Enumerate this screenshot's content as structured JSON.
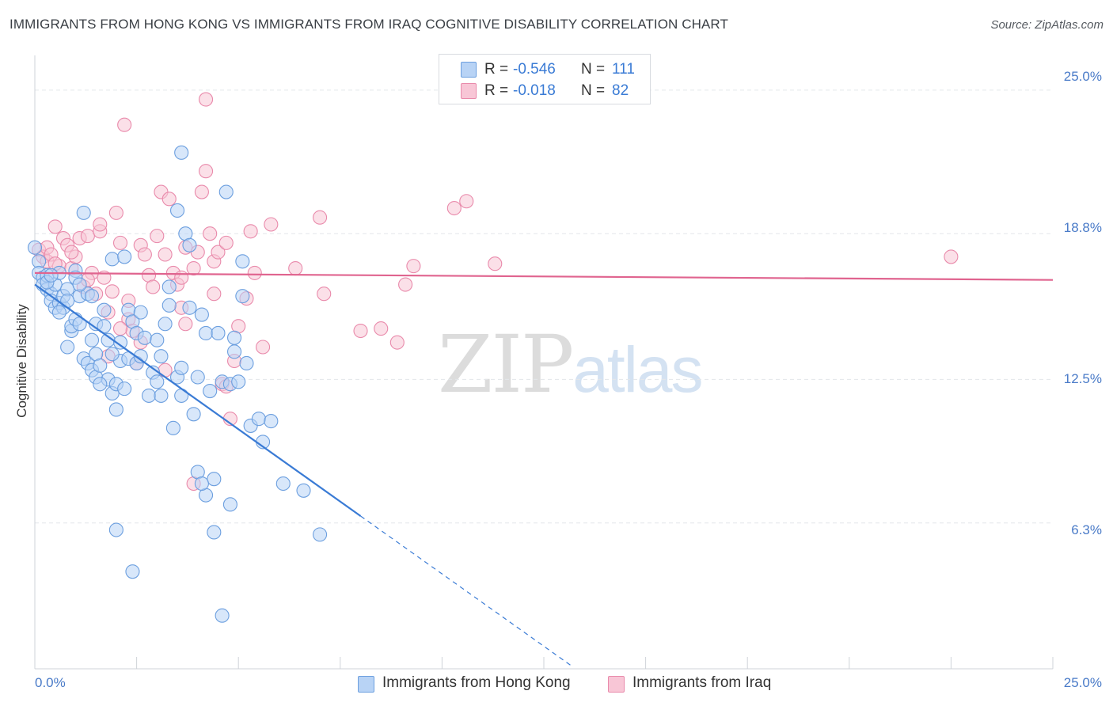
{
  "title": "IMMIGRANTS FROM HONG KONG VS IMMIGRANTS FROM IRAQ COGNITIVE DISABILITY CORRELATION CHART",
  "source": "Source: ZipAtlas.com",
  "watermark": {
    "zip": "ZIP",
    "atlas": "atlas"
  },
  "legend": {
    "r_label": "R =",
    "n_label": "N =",
    "rows": [
      {
        "r": "-0.546",
        "n": "111"
      },
      {
        "r": "-0.018",
        "n": "82"
      }
    ]
  },
  "colors": {
    "series1_fill": "#b8d3f5",
    "series1_stroke": "#6c9fdf",
    "series1_line": "#3a7bd5",
    "series2_fill": "#f8c6d6",
    "series2_stroke": "#e98aab",
    "series2_line": "#e0648f",
    "tick_text": "#4a7bc8"
  },
  "chart_data": {
    "type": "scatter",
    "title": "IMMIGRANTS FROM HONG KONG VS IMMIGRANTS FROM IRAQ COGNITIVE DISABILITY CORRELATION CHART",
    "xlabel": "",
    "ylabel": "Cognitive Disability",
    "xlim": [
      0,
      25
    ],
    "ylim": [
      0,
      26.5
    ],
    "x_tick_labels": [
      "0.0%",
      "25.0%"
    ],
    "y_ticks": [
      6.3,
      12.5,
      18.8,
      25.0
    ],
    "y_tick_labels": [
      "6.3%",
      "12.5%",
      "18.8%",
      "25.0%"
    ],
    "grid": true,
    "legend_position": "top-center",
    "series": [
      {
        "name": "Immigrants from Hong Kong",
        "r": -0.546,
        "n": 111,
        "trend": {
          "x0": 0.0,
          "y0": 16.6,
          "x1": 8.0,
          "y1": 6.6,
          "dash_to_x": 13.2
        },
        "points": [
          [
            0.0,
            18.2
          ],
          [
            0.1,
            17.6
          ],
          [
            0.1,
            17.1
          ],
          [
            0.2,
            16.9
          ],
          [
            0.2,
            16.6
          ],
          [
            0.3,
            16.4
          ],
          [
            0.3,
            17.0
          ],
          [
            0.4,
            16.2
          ],
          [
            0.4,
            15.9
          ],
          [
            0.5,
            15.6
          ],
          [
            0.5,
            16.6
          ],
          [
            0.6,
            15.8
          ],
          [
            0.6,
            17.1
          ],
          [
            0.7,
            15.6
          ],
          [
            0.7,
            16.1
          ],
          [
            0.8,
            16.4
          ],
          [
            0.8,
            13.9
          ],
          [
            0.9,
            14.6
          ],
          [
            0.9,
            14.8
          ],
          [
            1.0,
            15.1
          ],
          [
            1.0,
            17.2
          ],
          [
            1.0,
            16.9
          ],
          [
            1.1,
            16.1
          ],
          [
            1.1,
            14.9
          ],
          [
            1.2,
            19.7
          ],
          [
            1.2,
            13.4
          ],
          [
            1.3,
            13.2
          ],
          [
            1.3,
            16.2
          ],
          [
            1.4,
            16.1
          ],
          [
            1.4,
            12.9
          ],
          [
            1.5,
            12.6
          ],
          [
            1.5,
            14.9
          ],
          [
            1.5,
            13.6
          ],
          [
            1.6,
            13.1
          ],
          [
            1.7,
            14.8
          ],
          [
            1.7,
            15.5
          ],
          [
            1.8,
            14.2
          ],
          [
            1.8,
            12.5
          ],
          [
            1.9,
            11.9
          ],
          [
            1.9,
            17.7
          ],
          [
            2.0,
            11.2
          ],
          [
            2.0,
            12.3
          ],
          [
            2.1,
            13.3
          ],
          [
            2.2,
            12.1
          ],
          [
            2.2,
            17.8
          ],
          [
            2.3,
            15.5
          ],
          [
            2.3,
            13.4
          ],
          [
            2.4,
            15.0
          ],
          [
            2.5,
            14.5
          ],
          [
            2.5,
            13.2
          ],
          [
            2.6,
            15.4
          ],
          [
            2.7,
            14.3
          ],
          [
            2.8,
            11.8
          ],
          [
            2.9,
            12.8
          ],
          [
            3.0,
            12.4
          ],
          [
            3.0,
            14.2
          ],
          [
            3.1,
            13.5
          ],
          [
            3.2,
            14.9
          ],
          [
            3.3,
            15.7
          ],
          [
            3.3,
            16.5
          ],
          [
            3.4,
            10.4
          ],
          [
            3.5,
            12.6
          ],
          [
            3.6,
            11.8
          ],
          [
            3.7,
            18.8
          ],
          [
            3.8,
            15.6
          ],
          [
            3.9,
            11.0
          ],
          [
            4.0,
            12.6
          ],
          [
            4.1,
            15.3
          ],
          [
            4.2,
            14.5
          ],
          [
            4.3,
            12.0
          ],
          [
            4.5,
            14.5
          ],
          [
            4.6,
            12.4
          ],
          [
            4.7,
            20.6
          ],
          [
            4.8,
            12.3
          ],
          [
            4.9,
            13.7
          ],
          [
            4.9,
            14.3
          ],
          [
            5.0,
            12.4
          ],
          [
            5.1,
            17.6
          ],
          [
            5.2,
            13.2
          ],
          [
            5.3,
            10.5
          ],
          [
            5.5,
            10.8
          ],
          [
            5.6,
            9.8
          ],
          [
            5.8,
            10.7
          ],
          [
            6.1,
            8.0
          ],
          [
            6.6,
            7.7
          ],
          [
            7.0,
            5.8
          ],
          [
            3.6,
            22.3
          ],
          [
            3.5,
            19.8
          ],
          [
            3.8,
            18.3
          ],
          [
            4.0,
            8.5
          ],
          [
            4.2,
            7.5
          ],
          [
            4.4,
            8.2
          ],
          [
            2.0,
            6.0
          ],
          [
            2.4,
            4.2
          ],
          [
            4.4,
            5.9
          ],
          [
            4.6,
            2.3
          ],
          [
            4.8,
            7.1
          ],
          [
            4.1,
            8.0
          ],
          [
            5.1,
            16.1
          ],
          [
            0.3,
            16.7
          ],
          [
            0.4,
            17.0
          ],
          [
            0.6,
            15.4
          ],
          [
            0.8,
            15.9
          ],
          [
            1.1,
            16.6
          ],
          [
            1.4,
            14.2
          ],
          [
            1.6,
            12.3
          ],
          [
            1.9,
            13.6
          ],
          [
            2.1,
            14.1
          ],
          [
            2.6,
            13.5
          ],
          [
            3.1,
            11.8
          ],
          [
            3.6,
            13.0
          ]
        ]
      },
      {
        "name": "Immigrants from Iraq",
        "r": -0.018,
        "n": 82,
        "trend": {
          "x0": 0.0,
          "y0": 17.1,
          "x1": 25.0,
          "y1": 16.8
        },
        "points": [
          [
            0.1,
            18.1
          ],
          [
            0.2,
            17.8
          ],
          [
            0.3,
            17.6
          ],
          [
            0.3,
            18.2
          ],
          [
            0.4,
            17.9
          ],
          [
            0.5,
            19.1
          ],
          [
            0.6,
            17.4
          ],
          [
            0.7,
            18.6
          ],
          [
            0.8,
            18.3
          ],
          [
            0.9,
            17.3
          ],
          [
            1.0,
            17.8
          ],
          [
            1.1,
            18.6
          ],
          [
            1.2,
            16.5
          ],
          [
            1.3,
            18.7
          ],
          [
            1.4,
            17.1
          ],
          [
            1.5,
            16.2
          ],
          [
            1.6,
            18.9
          ],
          [
            1.6,
            19.2
          ],
          [
            1.7,
            16.9
          ],
          [
            1.8,
            15.4
          ],
          [
            1.9,
            16.3
          ],
          [
            2.0,
            19.7
          ],
          [
            2.1,
            18.4
          ],
          [
            2.2,
            23.5
          ],
          [
            2.3,
            15.1
          ],
          [
            2.4,
            14.6
          ],
          [
            2.5,
            13.2
          ],
          [
            2.6,
            18.3
          ],
          [
            2.7,
            17.9
          ],
          [
            2.8,
            17.0
          ],
          [
            2.9,
            16.5
          ],
          [
            3.0,
            18.7
          ],
          [
            3.1,
            20.6
          ],
          [
            3.2,
            17.9
          ],
          [
            3.3,
            20.3
          ],
          [
            3.4,
            17.1
          ],
          [
            3.5,
            16.6
          ],
          [
            3.6,
            15.6
          ],
          [
            3.7,
            18.2
          ],
          [
            3.9,
            17.3
          ],
          [
            4.0,
            18.0
          ],
          [
            4.1,
            20.6
          ],
          [
            4.2,
            21.5
          ],
          [
            4.3,
            18.8
          ],
          [
            4.4,
            17.6
          ],
          [
            4.5,
            18.0
          ],
          [
            4.6,
            12.3
          ],
          [
            4.7,
            12.2
          ],
          [
            4.8,
            10.8
          ],
          [
            4.9,
            13.3
          ],
          [
            5.0,
            14.8
          ],
          [
            5.2,
            16.0
          ],
          [
            5.3,
            18.9
          ],
          [
            5.4,
            17.1
          ],
          [
            5.6,
            13.9
          ],
          [
            5.8,
            19.2
          ],
          [
            6.4,
            17.3
          ],
          [
            7.0,
            19.5
          ],
          [
            7.1,
            16.2
          ],
          [
            8.0,
            14.6
          ],
          [
            8.5,
            14.7
          ],
          [
            8.9,
            14.1
          ],
          [
            9.1,
            16.6
          ],
          [
            9.3,
            17.4
          ],
          [
            10.3,
            19.9
          ],
          [
            10.6,
            20.2
          ],
          [
            11.3,
            17.5
          ],
          [
            22.5,
            17.8
          ],
          [
            4.2,
            24.6
          ],
          [
            3.7,
            14.9
          ],
          [
            2.6,
            14.1
          ],
          [
            1.8,
            13.5
          ],
          [
            2.1,
            14.7
          ],
          [
            3.6,
            16.9
          ],
          [
            4.4,
            16.2
          ],
          [
            3.2,
            12.9
          ],
          [
            0.5,
            17.5
          ],
          [
            0.9,
            18.0
          ],
          [
            1.3,
            16.8
          ],
          [
            2.3,
            15.9
          ],
          [
            3.9,
            8.0
          ],
          [
            4.7,
            18.4
          ]
        ]
      }
    ]
  }
}
